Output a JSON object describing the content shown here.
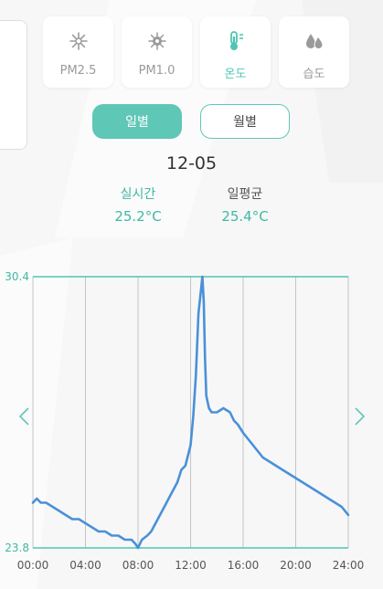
{
  "metrics": [
    {
      "label": "PM2.5",
      "icon": "pm25-icon",
      "active": false
    },
    {
      "label": "PM1.0",
      "icon": "pm10-icon",
      "active": false
    },
    {
      "label": "온도",
      "icon": "thermometer-icon",
      "active": true
    },
    {
      "label": "습도",
      "icon": "humidity-drops-icon",
      "active": false
    }
  ],
  "period": {
    "daily_label": "일별",
    "monthly_label": "월별",
    "selected": "daily"
  },
  "date": "12-05",
  "stats": {
    "realtime_title": "실시간",
    "realtime_value": "25.2°C",
    "average_title": "일평균",
    "average_value": "25.4°C"
  },
  "colors": {
    "accent": "#5fc7b6",
    "line": "#4a90d9",
    "axis_label": "#3fb8a4"
  },
  "chart_data": {
    "type": "line",
    "title": "",
    "xlabel": "",
    "ylabel": "",
    "x_ticks": [
      "00:00",
      "04:00",
      "08:00",
      "12:00",
      "16:00",
      "20:00",
      "24:00"
    ],
    "y_tick_labels": [
      "30.4",
      "23.8"
    ],
    "xlim": [
      0,
      24
    ],
    "ylim": [
      23.8,
      30.4
    ],
    "grid": "vertical",
    "series": [
      {
        "x": [
          0.0,
          0.3,
          0.6,
          1.0,
          1.5,
          2.0,
          2.5,
          3.0,
          3.5,
          4.0,
          4.5,
          5.0,
          5.5,
          6.0,
          6.5,
          7.0,
          7.5,
          7.8,
          8.0,
          8.3,
          8.7,
          9.0,
          9.5,
          10.0,
          10.5,
          11.0,
          11.3,
          11.6,
          12.0,
          12.2,
          12.4,
          12.6,
          12.8,
          12.9,
          13.0,
          13.1,
          13.2,
          13.4,
          13.6,
          14.0,
          14.5,
          15.0,
          15.3,
          15.6,
          16.0,
          16.5,
          17.0,
          17.5,
          18.0,
          18.5,
          19.0,
          19.5,
          20.0,
          20.5,
          21.0,
          21.5,
          22.0,
          22.5,
          23.0,
          23.5,
          24.0
        ],
        "y": [
          24.9,
          25.0,
          24.9,
          24.9,
          24.8,
          24.7,
          24.6,
          24.5,
          24.5,
          24.4,
          24.3,
          24.2,
          24.2,
          24.1,
          24.1,
          24.0,
          24.0,
          23.9,
          23.8,
          24.0,
          24.1,
          24.2,
          24.5,
          24.8,
          25.1,
          25.4,
          25.7,
          25.8,
          26.3,
          27.0,
          28.0,
          29.5,
          30.1,
          30.4,
          29.8,
          28.4,
          27.5,
          27.2,
          27.1,
          27.1,
          27.2,
          27.1,
          26.9,
          26.8,
          26.6,
          26.4,
          26.2,
          26.0,
          25.9,
          25.8,
          25.7,
          25.6,
          25.5,
          25.4,
          25.3,
          25.2,
          25.1,
          25.0,
          24.9,
          24.8,
          24.6
        ]
      }
    ]
  }
}
